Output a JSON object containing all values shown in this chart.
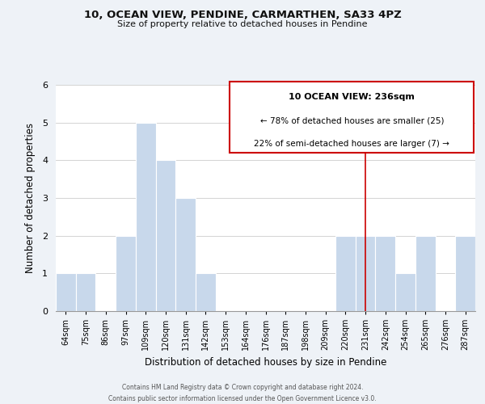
{
  "title": "10, OCEAN VIEW, PENDINE, CARMARTHEN, SA33 4PZ",
  "subtitle": "Size of property relative to detached houses in Pendine",
  "xlabel": "Distribution of detached houses by size in Pendine",
  "ylabel": "Number of detached properties",
  "bin_labels": [
    "64sqm",
    "75sqm",
    "86sqm",
    "97sqm",
    "109sqm",
    "120sqm",
    "131sqm",
    "142sqm",
    "153sqm",
    "164sqm",
    "176sqm",
    "187sqm",
    "198sqm",
    "209sqm",
    "220sqm",
    "231sqm",
    "242sqm",
    "254sqm",
    "265sqm",
    "276sqm",
    "287sqm"
  ],
  "bar_counts": [
    1,
    1,
    0,
    2,
    5,
    4,
    3,
    1,
    0,
    0,
    0,
    0,
    0,
    0,
    2,
    2,
    2,
    1,
    2,
    0,
    2
  ],
  "bar_color": "#c8d8eb",
  "grid_color": "#cccccc",
  "background_color": "#eef2f7",
  "plot_bg_color": "#ffffff",
  "red_line_index": 15,
  "red_line_color": "#cc0000",
  "legend_title": "10 OCEAN VIEW: 236sqm",
  "legend_line1": "← 78% of detached houses are smaller (25)",
  "legend_line2": "22% of semi-detached houses are larger (7) →",
  "ylim": [
    0,
    6
  ],
  "yticks": [
    0,
    1,
    2,
    3,
    4,
    5,
    6
  ],
  "footer1": "Contains HM Land Registry data © Crown copyright and database right 2024.",
  "footer2": "Contains public sector information licensed under the Open Government Licence v3.0."
}
